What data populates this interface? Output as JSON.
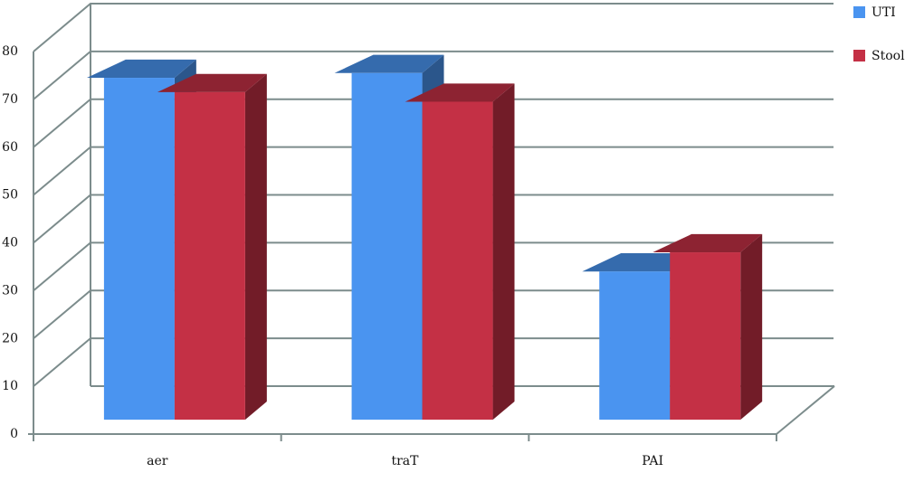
{
  "chart_data": {
    "type": "bar3d",
    "categories": [
      "aer",
      "traT",
      "PAI"
    ],
    "series": [
      {
        "name": "UTI",
        "color": "#4a94f0",
        "values": [
          71.5,
          72.5,
          31
        ]
      },
      {
        "name": "Stool",
        "color": "#c43045",
        "values": [
          68.5,
          66.5,
          35
        ]
      }
    ],
    "ylim": [
      0,
      80
    ],
    "yticks": [
      0,
      10,
      20,
      30,
      40,
      50,
      60,
      70,
      80
    ],
    "grid": true,
    "legend": "right"
  }
}
